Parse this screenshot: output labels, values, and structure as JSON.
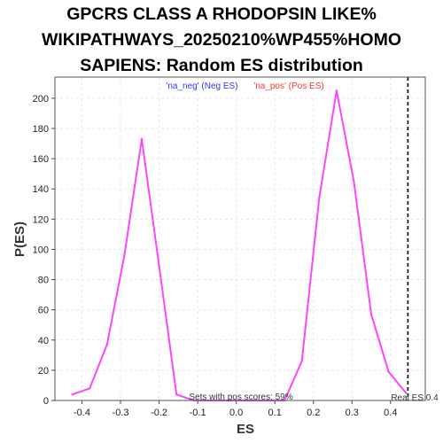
{
  "chart_data": {
    "type": "line",
    "title_lines": [
      "GPCRS CLASS A RHODOPSIN LIKE%",
      "WIKIPATHWAYS_20250210%WP455%HOMO",
      "SAPIENS: Random ES distribution"
    ],
    "xlabel": "ES",
    "ylabel": "P(ES)",
    "xlim": [
      -0.47,
      0.49
    ],
    "ylim": [
      0,
      214
    ],
    "xticks": [
      -0.4,
      -0.3,
      -0.2,
      -0.1,
      0.0,
      0.1,
      0.2,
      0.3,
      0.4
    ],
    "xtick_labels": [
      "-0.4",
      "-0.3",
      "-0.2",
      "-0.1",
      "0.0",
      "0.1",
      "0.2",
      "0.3",
      "0.4"
    ],
    "yticks": [
      0,
      20,
      40,
      60,
      80,
      100,
      120,
      140,
      160,
      180,
      200
    ],
    "ytick_labels": [
      "0",
      "20",
      "40",
      "60",
      "80",
      "100",
      "120",
      "140",
      "160",
      "180",
      "200"
    ],
    "grid": true,
    "series": [
      {
        "color": "#ff44ff",
        "x": [
          -0.425,
          -0.38,
          -0.335,
          -0.29,
          -0.245,
          -0.2,
          -0.155,
          -0.11,
          -0.065,
          -0.02,
          0.025,
          0.07,
          0.125,
          0.17,
          0.215,
          0.26,
          0.305,
          0.35,
          0.395,
          0.44
        ],
        "y": [
          4,
          8,
          37,
          96,
          173,
          89,
          4,
          0,
          0,
          0,
          0,
          0,
          0,
          26,
          134,
          205,
          145,
          57,
          19,
          5
        ]
      }
    ],
    "legend": [
      {
        "label": "'na_neg' (Neg ES)",
        "color": "#3333ff"
      },
      {
        "label": "'na_pos' (Pos ES)",
        "color": "#ff3333"
      }
    ],
    "legend_placement": "top-center",
    "real_es": 0.445,
    "real_es_label": "Real ES 0.4",
    "annotation": "Sets with pos scores: 59%"
  }
}
